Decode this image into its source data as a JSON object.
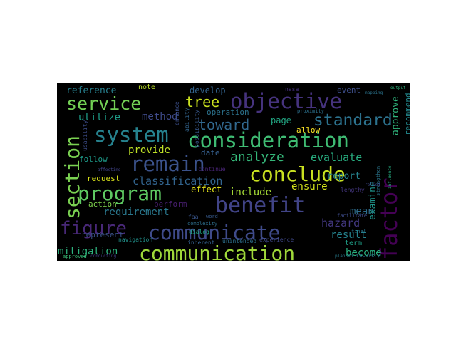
{
  "words": [
    {
      "text": "communication",
      "color": "#9fd83a",
      "vertical": false
    },
    {
      "text": "communicate",
      "color": "#3f4b8a",
      "vertical": false
    },
    {
      "text": "consideration",
      "color": "#3fbc73",
      "vertical": false
    },
    {
      "text": "objective",
      "color": "#46337e",
      "vertical": false
    },
    {
      "text": "conclude",
      "color": "#c8e020",
      "vertical": false
    },
    {
      "text": "benefit",
      "color": "#414487",
      "vertical": false
    },
    {
      "text": "program",
      "color": "#5ec962",
      "vertical": false
    },
    {
      "text": "system",
      "color": "#26828e",
      "vertical": false
    },
    {
      "text": "remain",
      "color": "#3b528b",
      "vertical": false
    },
    {
      "text": "service",
      "color": "#73d055",
      "vertical": false
    },
    {
      "text": "section",
      "color": "#7ad151",
      "vertical": true
    },
    {
      "text": "factor",
      "color": "#440154",
      "vertical": true
    },
    {
      "text": "figure",
      "color": "#482878",
      "vertical": false
    },
    {
      "text": "standard",
      "color": "#2c728e",
      "vertical": false
    },
    {
      "text": "analyze",
      "color": "#35b779",
      "vertical": false
    },
    {
      "text": "toward",
      "color": "#31688e",
      "vertical": false
    },
    {
      "text": "tree",
      "color": "#cae11f",
      "vertical": false
    },
    {
      "text": "evaluate",
      "color": "#28ae80",
      "vertical": false
    },
    {
      "text": "classification",
      "color": "#32648e",
      "vertical": false
    },
    {
      "text": "requirement",
      "color": "#2a788e",
      "vertical": false
    },
    {
      "text": "utilize",
      "color": "#1f9e89",
      "vertical": false
    },
    {
      "text": "method",
      "color": "#3e4a89",
      "vertical": false
    },
    {
      "text": "provide",
      "color": "#bddf26",
      "vertical": false
    },
    {
      "text": "include",
      "color": "#a5db36",
      "vertical": false
    },
    {
      "text": "ensure",
      "color": "#d2e21b",
      "vertical": false
    },
    {
      "text": "hazard",
      "color": "#443983",
      "vertical": false
    },
    {
      "text": "mitigation",
      "color": "#2db27d",
      "vertical": false
    },
    {
      "text": "result",
      "color": "#25838e",
      "vertical": false
    },
    {
      "text": "become",
      "color": "#29af7f",
      "vertical": false
    },
    {
      "text": "mean",
      "color": "#2e6e8e",
      "vertical": false
    },
    {
      "text": "examine",
      "color": "#1f958b",
      "vertical": true
    },
    {
      "text": "approve",
      "color": "#2fb47c",
      "vertical": true
    },
    {
      "text": "recommend",
      "color": "#23898e",
      "vertical": true
    },
    {
      "text": "reference",
      "color": "#277f8e",
      "vertical": false
    },
    {
      "text": "develop",
      "color": "#33638d",
      "vertical": false
    },
    {
      "text": "operation",
      "color": "#2c738e",
      "vertical": false
    },
    {
      "text": "page",
      "color": "#22a884",
      "vertical": false
    },
    {
      "text": "allow",
      "color": "#fde725",
      "vertical": false
    },
    {
      "text": "report",
      "color": "#26828e",
      "vertical": false
    },
    {
      "text": "request",
      "color": "#d8e219",
      "vertical": false
    },
    {
      "text": "perform",
      "color": "#481f70",
      "vertical": false
    },
    {
      "text": "effect",
      "color": "#e5e419",
      "vertical": false
    },
    {
      "text": "action",
      "color": "#7fd34e",
      "vertical": false
    },
    {
      "text": "represent",
      "color": "#3b528b",
      "vertical": false
    },
    {
      "text": "follow",
      "color": "#1e9b8a",
      "vertical": false
    },
    {
      "text": "date",
      "color": "#355f8d",
      "vertical": false
    },
    {
      "text": "note",
      "color": "#bade28",
      "vertical": false
    },
    {
      "text": "event",
      "color": "#3d4e8a",
      "vertical": false
    },
    {
      "text": "nasa",
      "color": "#46307e",
      "vertical": false
    },
    {
      "text": "term",
      "color": "#1fa088",
      "vertical": false
    },
    {
      "text": "final",
      "color": "#2a778e",
      "vertical": false
    },
    {
      "text": "experience",
      "color": "#3f4889",
      "vertical": false
    },
    {
      "text": "dialog",
      "color": "#20a386",
      "vertical": false
    },
    {
      "text": "inherent",
      "color": "#34608d",
      "vertical": false
    },
    {
      "text": "unintended",
      "color": "#2d708e",
      "vertical": false
    },
    {
      "text": "navigation",
      "color": "#21918c",
      "vertical": false
    },
    {
      "text": "approved",
      "color": "#3aba76",
      "vertical": false
    },
    {
      "text": "conducting",
      "color": "#433e85",
      "vertical": false
    },
    {
      "text": "lengthy",
      "color": "#453781",
      "vertical": false
    },
    {
      "text": "facilitate",
      "color": "#3e4c8a",
      "vertical": false
    },
    {
      "text": "complexity",
      "color": "#2e6f8e",
      "vertical": false
    },
    {
      "text": "usability",
      "color": "#3d4d8a",
      "vertical": true
    },
    {
      "text": "influence",
      "color": "#26ad81",
      "vertical": true
    },
    {
      "text": "strengthen",
      "color": "#2a768e",
      "vertical": true
    },
    {
      "text": "proximity",
      "color": "#2c718e",
      "vertical": false
    },
    {
      "text": "affecting",
      "color": "#414387",
      "vertical": false
    },
    {
      "text": "continue",
      "color": "#482475",
      "vertical": false
    },
    {
      "text": "possibility",
      "color": "#38588c",
      "vertical": true
    },
    {
      "text": "recovery",
      "color": "#2d718e",
      "vertical": false
    },
    {
      "text": "faa",
      "color": "#39568c",
      "vertical": false
    },
    {
      "text": "word",
      "color": "#375a8c",
      "vertical": false
    },
    {
      "text": "enhance",
      "color": "#3c508b",
      "vertical": true
    },
    {
      "text": "mapping",
      "color": "#2b748e",
      "vertical": false
    },
    {
      "text": "ability",
      "color": "#32658e",
      "vertical": true
    },
    {
      "text": "output",
      "color": "#2fb47c",
      "vertical": false
    },
    {
      "text": "relied",
      "color": "#3e4989",
      "vertical": false
    },
    {
      "text": "planned",
      "color": "#287d8e",
      "vertical": false
    }
  ]
}
